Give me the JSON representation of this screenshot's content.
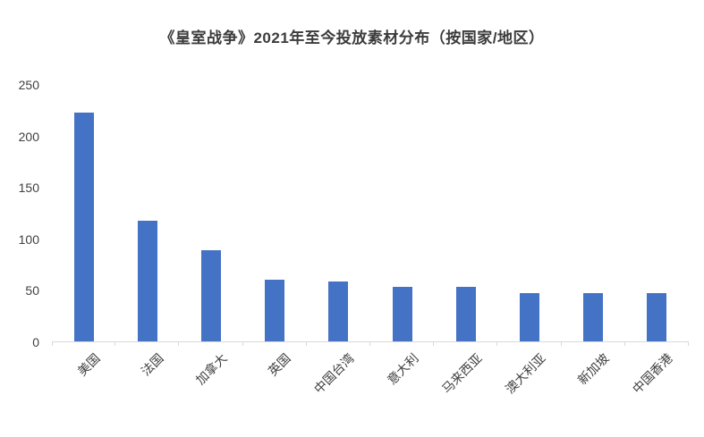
{
  "chart_data": {
    "type": "bar",
    "title": "《皇室战争》2021年至今投放素材分布（按国家/地区）",
    "categories": [
      "美国",
      "法国",
      "加拿大",
      "英国",
      "中国台湾",
      "意大利",
      "马来西亚",
      "澳大利亚",
      "新加坡",
      "中国香港"
    ],
    "values": [
      223,
      118,
      89,
      61,
      59,
      54,
      54,
      48,
      48,
      48
    ],
    "xlabel": "",
    "ylabel": "",
    "ylim": [
      0,
      250
    ],
    "ytick_step": 50,
    "grid": false,
    "legend": false,
    "bar_color": "#4472C4",
    "axis_text_color": "#404040",
    "title_color": "#3b3b3b",
    "baseline_color": "#d9d9d9"
  }
}
